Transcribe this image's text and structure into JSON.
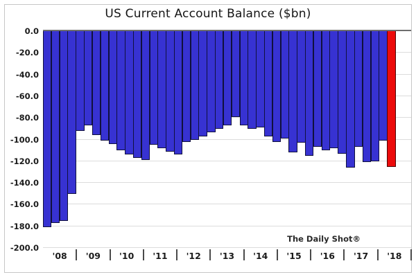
{
  "title": "US Current Account Balance ($bn)",
  "watermark": "The Daily Shot®",
  "chart_data": {
    "type": "bar",
    "title": "US Current Account Balance ($bn)",
    "ylabel": "",
    "xlabel": "",
    "unit": "$bn",
    "ylim": [
      -200,
      0
    ],
    "ytick_step": 20,
    "ytick_labels": [
      "0.0",
      "-20.0",
      "-40.0",
      "-60.0",
      "-80.0",
      "-100.0",
      "-120.0",
      "-140.0",
      "-160.0",
      "-180.0",
      "-200.0"
    ],
    "grid": true,
    "legend": "none",
    "year_labels": [
      "'08",
      "'09",
      "'10",
      "'11",
      "'12",
      "'13",
      "'14",
      "'15",
      "'16",
      "'17",
      "'18"
    ],
    "bars_per_year": [
      4,
      4,
      4,
      4,
      4,
      4,
      4,
      4,
      4,
      4,
      3
    ],
    "x": [
      "2008 Q1",
      "2008 Q2",
      "2008 Q3",
      "2008 Q4",
      "2009 Q1",
      "2009 Q2",
      "2009 Q3",
      "2009 Q4",
      "2010 Q1",
      "2010 Q2",
      "2010 Q3",
      "2010 Q4",
      "2011 Q1",
      "2011 Q2",
      "2011 Q3",
      "2011 Q4",
      "2012 Q1",
      "2012 Q2",
      "2012 Q3",
      "2012 Q4",
      "2013 Q1",
      "2013 Q2",
      "2013 Q3",
      "2013 Q4",
      "2014 Q1",
      "2014 Q2",
      "2014 Q3",
      "2014 Q4",
      "2015 Q1",
      "2015 Q2",
      "2015 Q3",
      "2015 Q4",
      "2016 Q1",
      "2016 Q2",
      "2016 Q3",
      "2016 Q4",
      "2017 Q1",
      "2017 Q2",
      "2017 Q3",
      "2017 Q4",
      "2018 Q1",
      "2018 Q2",
      "2018 Q3"
    ],
    "values": [
      -181,
      -177,
      -175,
      -150,
      -92,
      -87,
      -96,
      -101,
      -104,
      -110,
      -114,
      -117,
      -119,
      -105,
      -108,
      -111,
      -114,
      -102,
      -100,
      -97,
      -93,
      -90,
      -87,
      -79,
      -87,
      -90,
      -89,
      -97,
      -102,
      -99,
      -112,
      -103,
      -115,
      -107,
      -110,
      -108,
      -113,
      -126,
      -107,
      -121,
      -120,
      -101,
      -125
    ],
    "highlight_index": 42,
    "colors": {
      "bar": "#3732d2",
      "bar_border": "#10103c",
      "highlight": "#ec0b0b",
      "highlight_border": "#4a0505",
      "grid": "#dcdcdc",
      "zero_line": "#6e6e6e"
    },
    "source_note": "The Daily Shot®"
  }
}
